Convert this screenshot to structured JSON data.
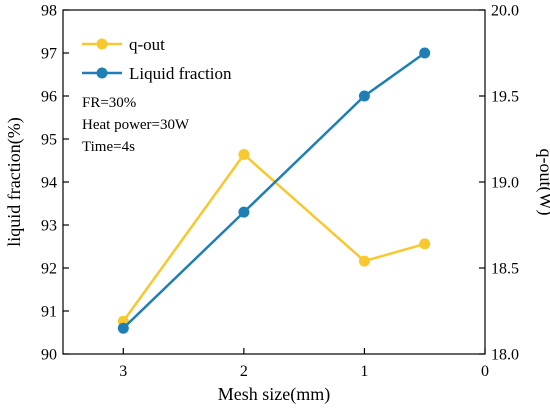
{
  "chart_data": {
    "type": "line",
    "xlabel": "Mesh size(mm)",
    "ylabel_left": "liquid fraction(%)",
    "ylabel_right": "q-out(W)",
    "xlim": [
      3.5,
      0
    ],
    "x_reversed": true,
    "x_ticks": [
      "3",
      "2",
      "1",
      "0"
    ],
    "ylim_left": [
      90,
      98
    ],
    "y_ticks_left": [
      "90",
      "91",
      "92",
      "93",
      "94",
      "95",
      "96",
      "97",
      "98"
    ],
    "ylim_right": [
      18.0,
      20.0
    ],
    "y_ticks_right": [
      "18.0",
      "18.5",
      "19.0",
      "19.5",
      "20.0"
    ],
    "grid": false,
    "legend_position": "top-left",
    "series": [
      {
        "name": "q-out",
        "axis": "right",
        "color": "#F8C830",
        "x": [
          3,
          2,
          1,
          0.5
        ],
        "y": [
          18.19,
          19.16,
          18.54,
          18.64
        ]
      },
      {
        "name": "Liquid fraction",
        "axis": "left",
        "color": "#1F7FB4",
        "x": [
          3,
          2,
          1,
          0.5
        ],
        "y": [
          90.6,
          93.3,
          96.0,
          97.0
        ]
      }
    ],
    "annotations": [
      "FR=30%",
      "Heat power=30W",
      "Time=4s"
    ]
  }
}
